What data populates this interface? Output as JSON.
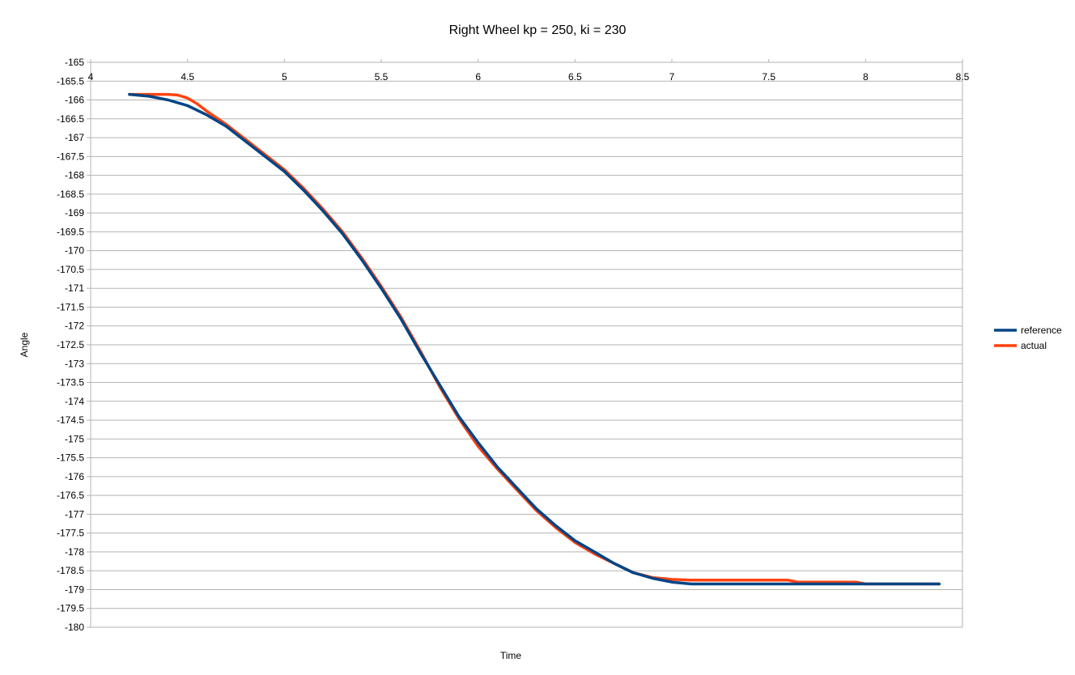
{
  "chart_data": {
    "type": "line",
    "title": "Right Wheel kp = 250, ki = 230",
    "xlabel": "Time",
    "ylabel": "Angle",
    "xlim": [
      4,
      8.5
    ],
    "ylim": [
      -180,
      -165
    ],
    "x_ticks": [
      "4",
      "4.5",
      "5",
      "5.5",
      "6",
      "6.5",
      "7",
      "7.5",
      "8",
      "8.5"
    ],
    "y_ticks": [
      "-165",
      "-165.5",
      "-166",
      "-166.5",
      "-167",
      "-167.5",
      "-168",
      "-168.5",
      "-169",
      "-169.5",
      "-170",
      "-170.5",
      "-171",
      "-171.5",
      "-172",
      "-172.5",
      "-173",
      "-173.5",
      "-174",
      "-174.5",
      "-175",
      "-175.5",
      "-176",
      "-176.5",
      "-177",
      "-177.5",
      "-178",
      "-178.5",
      "-179",
      "-179.5",
      "-180"
    ],
    "grid": true,
    "legend_position": "right",
    "series": [
      {
        "name": "reference",
        "color": "#004586",
        "x": [
          4.2,
          4.3,
          4.4,
          4.5,
          4.6,
          4.7,
          4.8,
          4.9,
          5.0,
          5.1,
          5.2,
          5.3,
          5.4,
          5.5,
          5.6,
          5.7,
          5.8,
          5.9,
          6.0,
          6.1,
          6.2,
          6.3,
          6.4,
          6.5,
          6.6,
          6.7,
          6.8,
          6.9,
          7.0,
          7.1,
          7.2,
          7.4,
          7.6,
          7.8,
          8.0,
          8.2,
          8.38
        ],
        "y": [
          -165.85,
          -165.9,
          -166.0,
          -166.15,
          -166.4,
          -166.7,
          -167.1,
          -167.5,
          -167.9,
          -168.4,
          -168.95,
          -169.55,
          -170.25,
          -171.0,
          -171.8,
          -172.7,
          -173.55,
          -174.4,
          -175.1,
          -175.75,
          -176.3,
          -176.85,
          -177.3,
          -177.7,
          -178.0,
          -178.3,
          -178.55,
          -178.7,
          -178.8,
          -178.85,
          -178.85,
          -178.85,
          -178.85,
          -178.85,
          -178.85,
          -178.85,
          -178.85
        ]
      },
      {
        "name": "actual",
        "color": "#ff420e",
        "x": [
          4.2,
          4.3,
          4.4,
          4.45,
          4.5,
          4.55,
          4.6,
          4.7,
          4.8,
          4.9,
          5.0,
          5.1,
          5.2,
          5.3,
          5.4,
          5.5,
          5.6,
          5.7,
          5.8,
          5.9,
          6.0,
          6.1,
          6.2,
          6.3,
          6.4,
          6.5,
          6.6,
          6.7,
          6.8,
          6.9,
          7.0,
          7.1,
          7.2,
          7.4,
          7.6,
          7.65,
          7.8,
          7.95,
          8.0,
          8.1,
          8.38
        ],
        "y": [
          -165.85,
          -165.85,
          -165.85,
          -165.87,
          -165.95,
          -166.1,
          -166.3,
          -166.65,
          -167.05,
          -167.45,
          -167.85,
          -168.35,
          -168.9,
          -169.5,
          -170.2,
          -170.95,
          -171.75,
          -172.65,
          -173.6,
          -174.45,
          -175.2,
          -175.8,
          -176.35,
          -176.9,
          -177.35,
          -177.75,
          -178.05,
          -178.3,
          -178.55,
          -178.68,
          -178.73,
          -178.75,
          -178.75,
          -178.75,
          -178.75,
          -178.8,
          -178.8,
          -178.8,
          -178.85,
          -178.85,
          -178.85
        ]
      }
    ]
  }
}
